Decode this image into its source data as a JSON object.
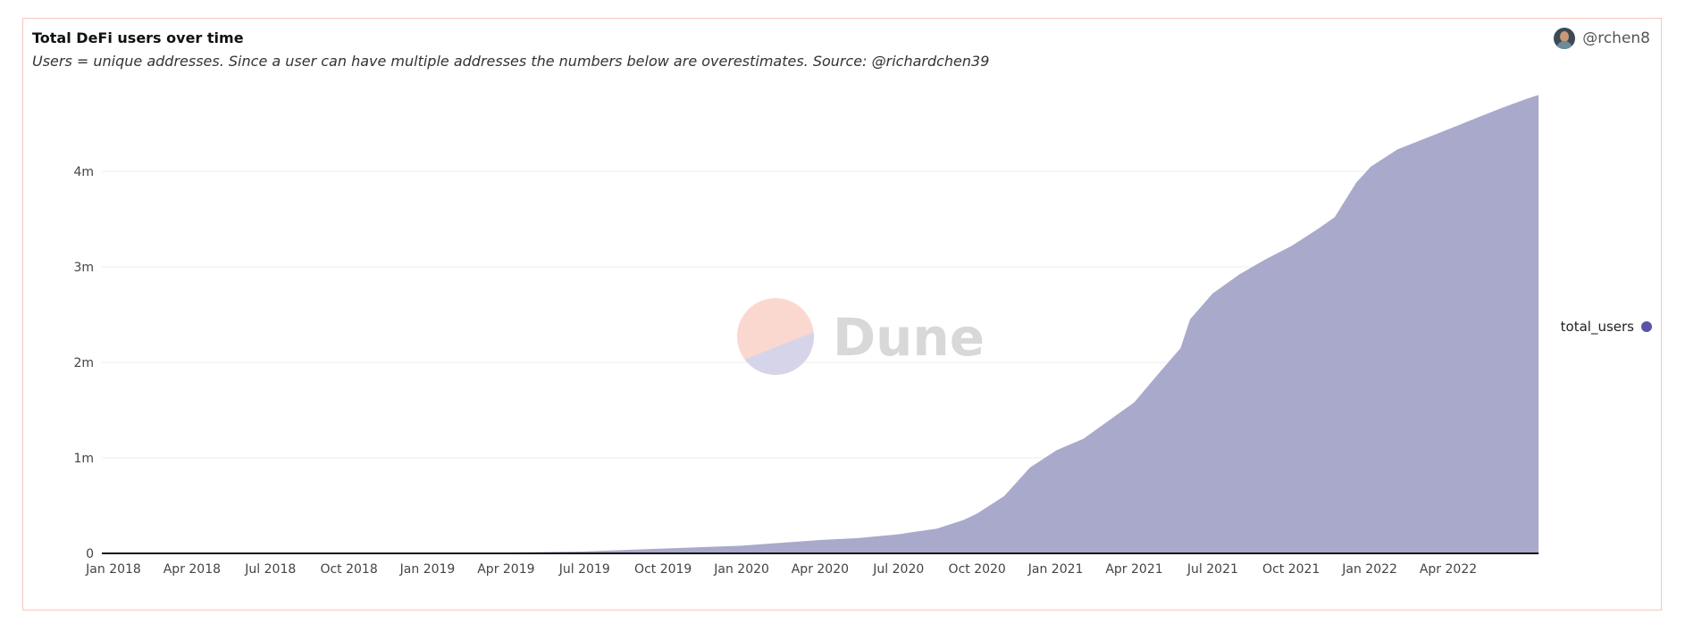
{
  "header": {
    "title": "Total DeFi users over time",
    "subtitle": "Users = unique addresses. Since a user can have multiple addresses the numbers below are overestimates. Source: @richardchen39",
    "author": "@rchen8"
  },
  "watermark": {
    "text": "Dune"
  },
  "colors": {
    "area": "#a9a9cb",
    "legend_dot": "#5855a6",
    "grid": "#eeeeee",
    "axis": "#111111"
  },
  "chart_data": {
    "type": "area",
    "title": "Total DeFi users over time",
    "xlabel": "",
    "ylabel": "",
    "ylim": [
      0,
      4800000
    ],
    "grid": true,
    "legend_position": "right",
    "x_ticks": [
      "Jan 2018",
      "Apr 2018",
      "Jul 2018",
      "Oct 2018",
      "Jan 2019",
      "Apr 2019",
      "Jul 2019",
      "Oct 2019",
      "Jan 2020",
      "Apr 2020",
      "Jul 2020",
      "Oct 2020",
      "Jan 2021",
      "Apr 2021",
      "Jul 2021",
      "Oct 2021",
      "Jan 2022",
      "Apr 2022"
    ],
    "y_ticks": [
      {
        "value": 0,
        "label": "0"
      },
      {
        "value": 1000000,
        "label": "1m"
      },
      {
        "value": 2000000,
        "label": "2m"
      },
      {
        "value": 3000000,
        "label": "3m"
      },
      {
        "value": 4000000,
        "label": "4m"
      }
    ],
    "series": [
      {
        "name": "total_users",
        "points": [
          [
            "2018-01-01",
            0
          ],
          [
            "2018-07-01",
            1000
          ],
          [
            "2019-01-01",
            3000
          ],
          [
            "2019-04-01",
            8000
          ],
          [
            "2019-07-01",
            20000
          ],
          [
            "2019-10-01",
            50000
          ],
          [
            "2020-01-01",
            80000
          ],
          [
            "2020-04-01",
            140000
          ],
          [
            "2020-05-15",
            160000
          ],
          [
            "2020-07-01",
            200000
          ],
          [
            "2020-08-15",
            260000
          ],
          [
            "2020-09-15",
            350000
          ],
          [
            "2020-10-01",
            420000
          ],
          [
            "2020-11-01",
            600000
          ],
          [
            "2020-12-01",
            900000
          ],
          [
            "2021-01-01",
            1080000
          ],
          [
            "2021-02-01",
            1200000
          ],
          [
            "2021-03-01",
            1380000
          ],
          [
            "2021-04-01",
            1580000
          ],
          [
            "2021-05-01",
            1900000
          ],
          [
            "2021-05-25",
            2150000
          ],
          [
            "2021-06-05",
            2450000
          ],
          [
            "2021-07-01",
            2720000
          ],
          [
            "2021-08-01",
            2920000
          ],
          [
            "2021-09-01",
            3080000
          ],
          [
            "2021-10-01",
            3220000
          ],
          [
            "2021-11-01",
            3400000
          ],
          [
            "2021-11-20",
            3520000
          ],
          [
            "2021-12-15",
            3880000
          ],
          [
            "2022-01-01",
            4050000
          ],
          [
            "2022-02-01",
            4230000
          ],
          [
            "2022-03-01",
            4330000
          ],
          [
            "2022-04-01",
            4440000
          ],
          [
            "2022-05-01",
            4550000
          ],
          [
            "2022-06-01",
            4660000
          ],
          [
            "2022-07-01",
            4760000
          ],
          [
            "2022-07-15",
            4800000
          ]
        ]
      }
    ]
  }
}
